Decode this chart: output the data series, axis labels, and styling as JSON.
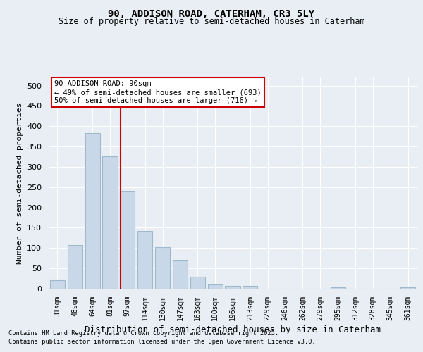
{
  "title1": "90, ADDISON ROAD, CATERHAM, CR3 5LY",
  "title2": "Size of property relative to semi-detached houses in Caterham",
  "xlabel": "Distribution of semi-detached houses by size in Caterham",
  "ylabel": "Number of semi-detached properties",
  "categories": [
    "31sqm",
    "48sqm",
    "64sqm",
    "81sqm",
    "97sqm",
    "114sqm",
    "130sqm",
    "147sqm",
    "163sqm",
    "180sqm",
    "196sqm",
    "213sqm",
    "229sqm",
    "246sqm",
    "262sqm",
    "279sqm",
    "295sqm",
    "312sqm",
    "328sqm",
    "345sqm",
    "361sqm"
  ],
  "values": [
    20,
    107,
    383,
    325,
    240,
    143,
    102,
    70,
    30,
    10,
    7,
    7,
    0,
    0,
    0,
    0,
    3,
    0,
    0,
    0,
    3
  ],
  "bar_color": "#c8d8e8",
  "bar_edge_color": "#a0b8cc",
  "vline_x": 3.62,
  "vline_color": "#cc0000",
  "annotation_title": "90 ADDISON ROAD: 90sqm",
  "annotation_line1": "← 49% of semi-detached houses are smaller (693)",
  "annotation_line2": "50% of semi-detached houses are larger (716) →",
  "annotation_box_color": "#ffffff",
  "annotation_box_edge": "#cc0000",
  "bg_color": "#e8eef4",
  "grid_color": "#ffffff",
  "footer1": "Contains HM Land Registry data © Crown copyright and database right 2025.",
  "footer2": "Contains public sector information licensed under the Open Government Licence v3.0.",
  "ylim": [
    0,
    520
  ],
  "yticks": [
    0,
    50,
    100,
    150,
    200,
    250,
    300,
    350,
    400,
    450,
    500
  ]
}
